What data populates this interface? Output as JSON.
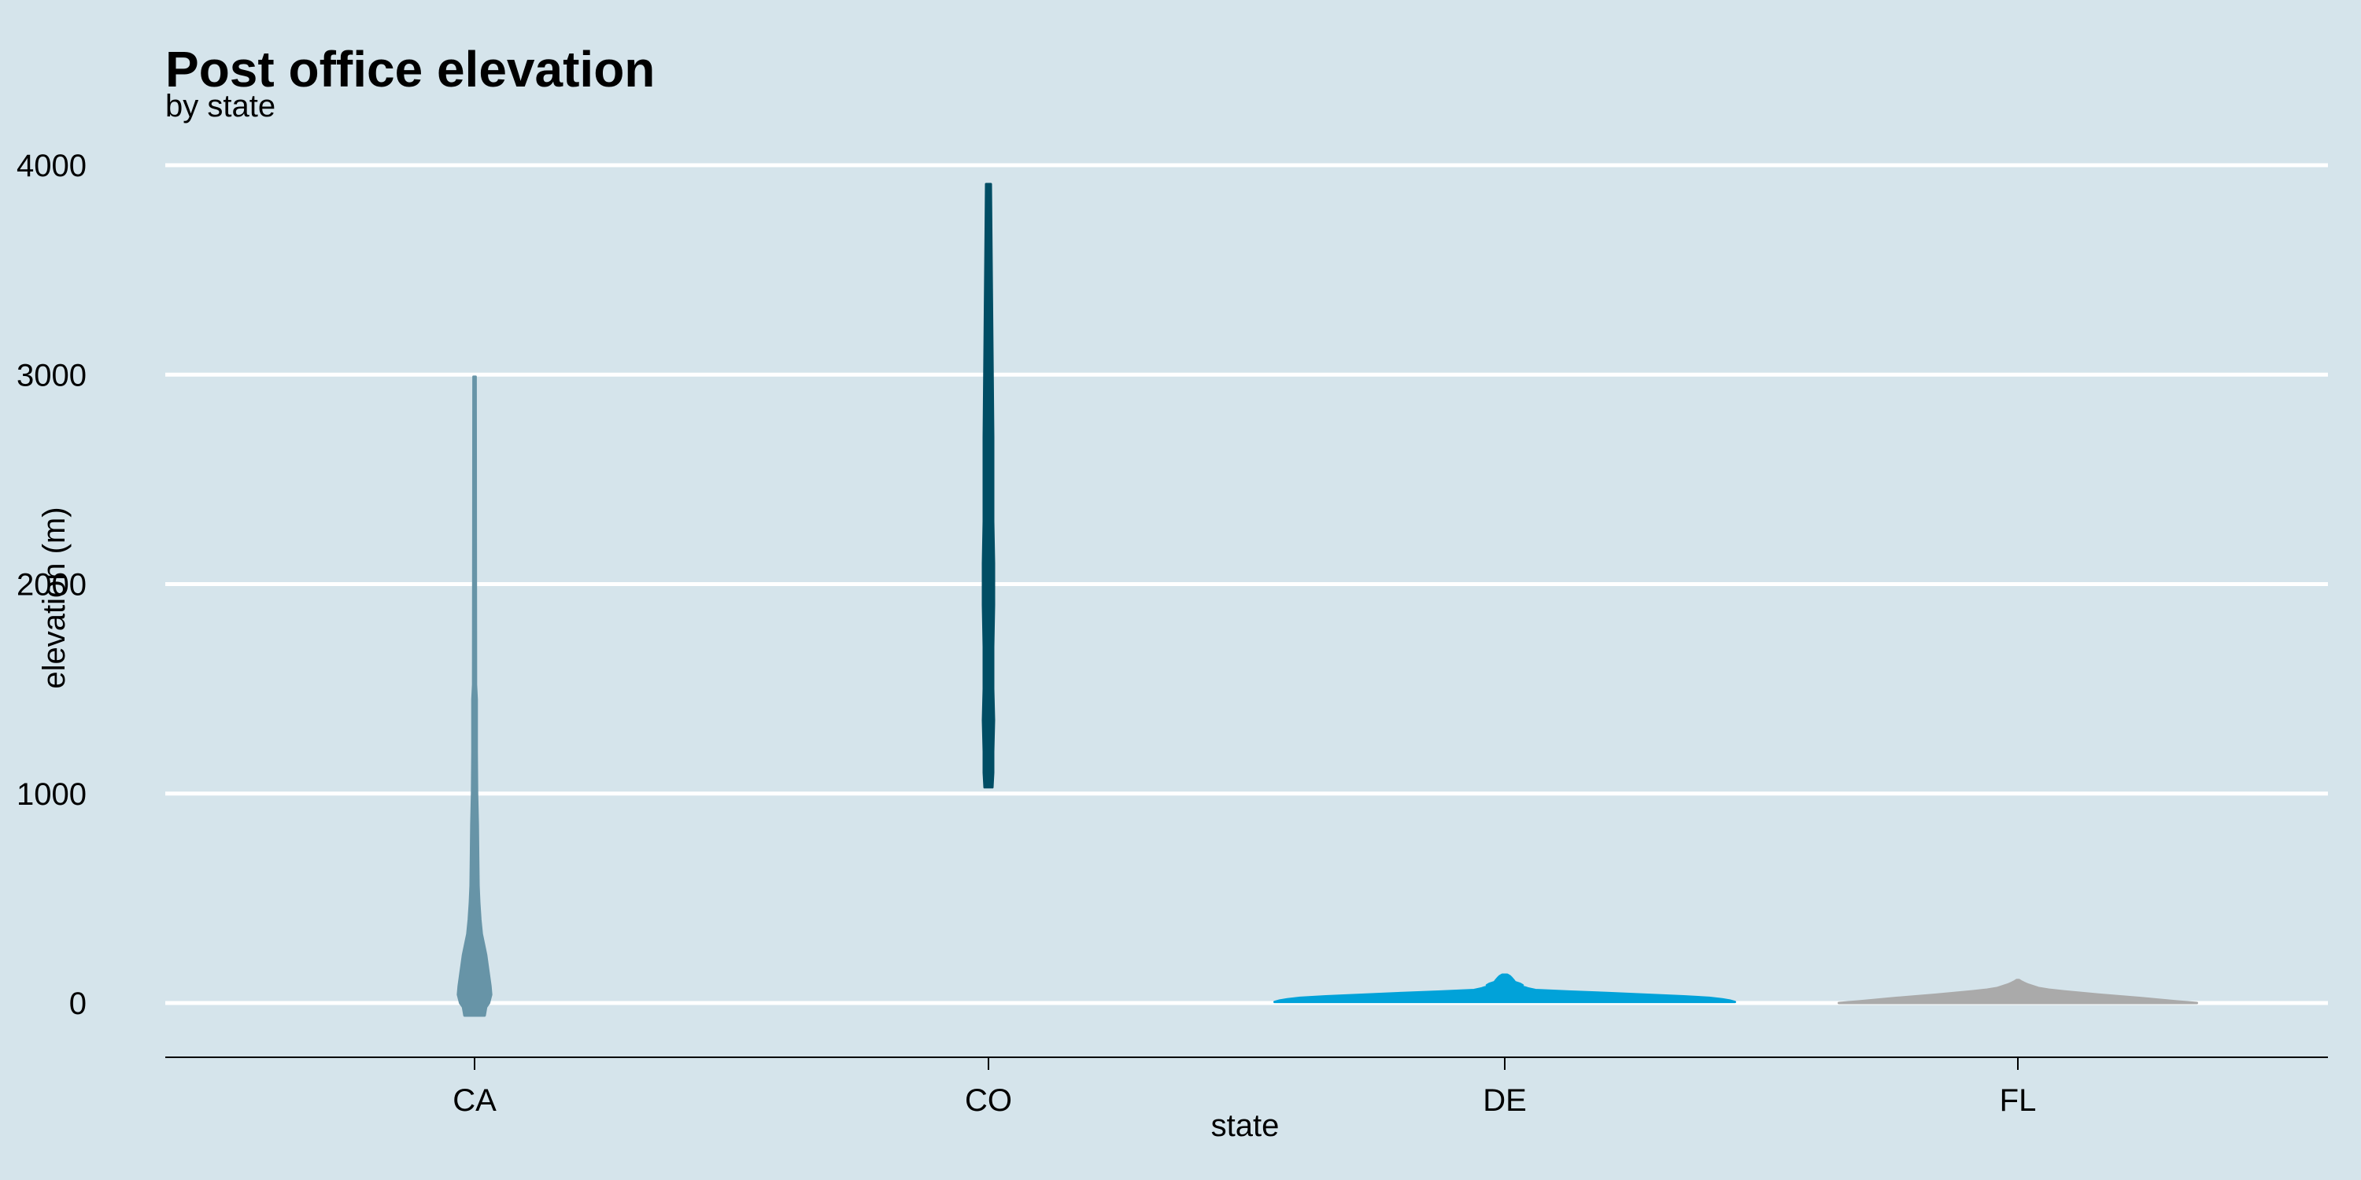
{
  "chart_data": {
    "type": "violin",
    "title": "Post office elevation",
    "subtitle": "by state",
    "xlabel": "state",
    "ylabel": "elevation (m)",
    "categories": [
      "CA",
      "CO",
      "DE",
      "FL"
    ],
    "ylim": [
      -260,
      4150
    ],
    "yticks": [
      0,
      1000,
      2000,
      3000,
      4000
    ],
    "grid": {
      "horizontal": true,
      "vertical": false
    },
    "legend": "none",
    "colors": {
      "background": "#d5e4eb",
      "gridline": "#ffffff",
      "axis_line": "#000000",
      "CA": "#6794a7",
      "CO": "#014d64",
      "DE": "#01a2d9",
      "FL": "#aaaaaa"
    },
    "violins": [
      {
        "category": "CA",
        "min": -60,
        "max": 2990,
        "profile": [
          [
            -60,
            0.028
          ],
          [
            -20,
            0.032
          ],
          [
            0,
            0.04
          ],
          [
            40,
            0.046
          ],
          [
            80,
            0.044
          ],
          [
            130,
            0.04
          ],
          [
            180,
            0.036
          ],
          [
            230,
            0.032
          ],
          [
            280,
            0.026
          ],
          [
            330,
            0.02
          ],
          [
            400,
            0.016
          ],
          [
            480,
            0.013
          ],
          [
            560,
            0.011
          ],
          [
            700,
            0.01
          ],
          [
            850,
            0.009
          ],
          [
            1000,
            0.007
          ],
          [
            1200,
            0.006
          ],
          [
            1450,
            0.006
          ],
          [
            1520,
            0.004
          ],
          [
            1800,
            0.0038
          ],
          [
            2200,
            0.0035
          ],
          [
            2600,
            0.0033
          ],
          [
            2990,
            0.003
          ]
        ]
      },
      {
        "category": "CO",
        "min": 1030,
        "max": 3910,
        "profile": [
          [
            1030,
            0.005
          ],
          [
            1100,
            0.006
          ],
          [
            1200,
            0.006
          ],
          [
            1350,
            0.007
          ],
          [
            1500,
            0.006
          ],
          [
            1700,
            0.006
          ],
          [
            1900,
            0.007
          ],
          [
            2100,
            0.007
          ],
          [
            2300,
            0.006
          ],
          [
            2500,
            0.006
          ],
          [
            2700,
            0.006
          ],
          [
            2900,
            0.0055
          ],
          [
            3100,
            0.005
          ],
          [
            3300,
            0.0045
          ],
          [
            3500,
            0.004
          ],
          [
            3700,
            0.0035
          ],
          [
            3910,
            0.003
          ]
        ]
      },
      {
        "category": "DE",
        "min": 5,
        "max": 135,
        "profile": [
          [
            5,
            0.9
          ],
          [
            12,
            0.88
          ],
          [
            18,
            0.85
          ],
          [
            25,
            0.8
          ],
          [
            32,
            0.7
          ],
          [
            40,
            0.55
          ],
          [
            48,
            0.4
          ],
          [
            55,
            0.25
          ],
          [
            62,
            0.12
          ],
          [
            70,
            0.09
          ],
          [
            78,
            0.07
          ],
          [
            85,
            0.07
          ],
          [
            92,
            0.06
          ],
          [
            100,
            0.04
          ],
          [
            108,
            0.035
          ],
          [
            115,
            0.03
          ],
          [
            122,
            0.025
          ],
          [
            128,
            0.02
          ],
          [
            135,
            0.01
          ]
        ]
      },
      {
        "category": "FL",
        "min": 0,
        "max": 110,
        "profile": [
          [
            0,
            0.7
          ],
          [
            8,
            0.62
          ],
          [
            16,
            0.55
          ],
          [
            24,
            0.48
          ],
          [
            32,
            0.4
          ],
          [
            40,
            0.32
          ],
          [
            48,
            0.25
          ],
          [
            56,
            0.18
          ],
          [
            64,
            0.12
          ],
          [
            72,
            0.08
          ],
          [
            80,
            0.06
          ],
          [
            88,
            0.04
          ],
          [
            96,
            0.025
          ],
          [
            104,
            0.012
          ],
          [
            110,
            0.004
          ]
        ]
      }
    ]
  }
}
